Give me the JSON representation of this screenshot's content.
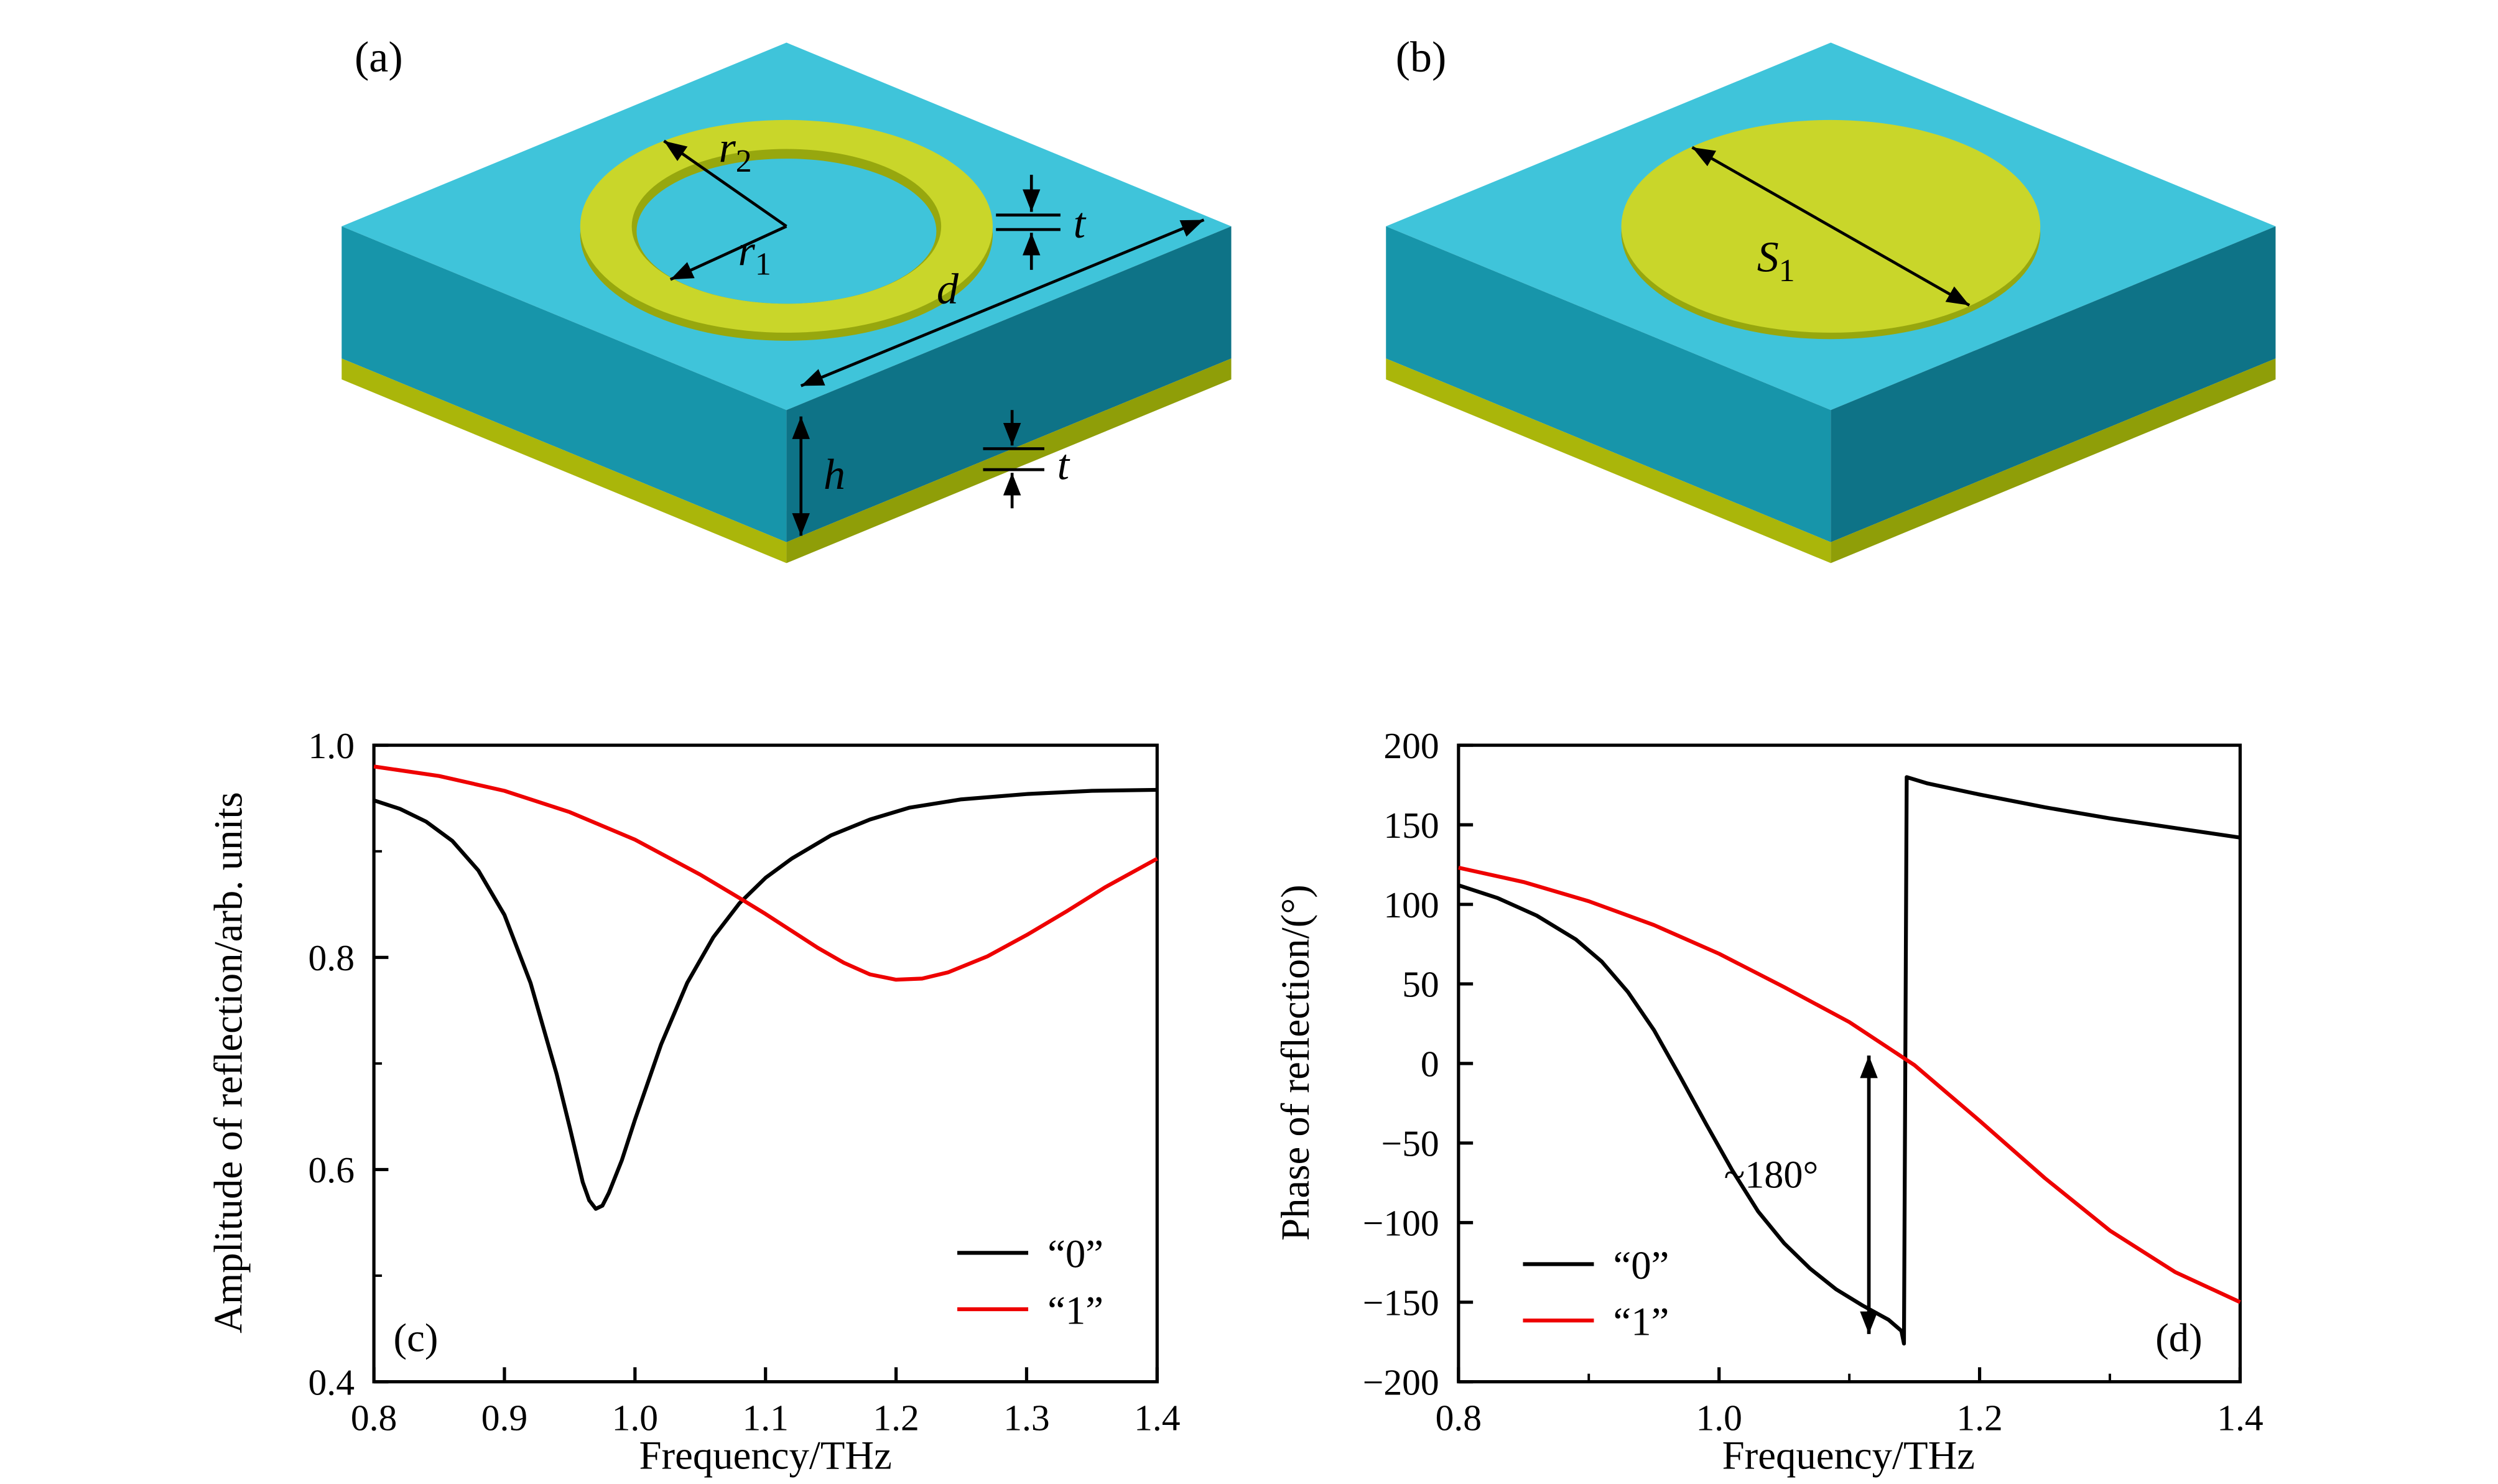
{
  "panel_labels": {
    "a": "(a)",
    "b": "(b)"
  },
  "diagram_a": {
    "r2": {
      "base": "r",
      "sub": "2"
    },
    "r1": {
      "base": "r",
      "sub": "1"
    },
    "t_ring": "t",
    "d": "d",
    "t_layer": "t",
    "h": "h"
  },
  "diagram_b": {
    "s1": {
      "base": "S",
      "sub": "1"
    }
  },
  "colors": {
    "substrate_top": "#3fc4da",
    "substrate_left": "#1795aa",
    "substrate_right": "#0e7387",
    "metal": "#c9d62a",
    "metal_dark": "#97a70e",
    "ground_left": "#aab60a",
    "ground_right": "#8f9e08",
    "series_0": "#000000",
    "series_1": "#ee0000"
  },
  "chart_data": [
    {
      "type": "line",
      "panel_label": "(c)",
      "xlabel": "Frequency/THz",
      "ylabel": "Amplitude of reflection/arb. units",
      "xlim": [
        0.8,
        1.4
      ],
      "ylim": [
        0.4,
        1.0
      ],
      "xticks": [
        [
          0.8,
          "0.8"
        ],
        [
          0.9,
          "0.9"
        ],
        [
          1.0,
          "1.0"
        ],
        [
          1.1,
          "1.1"
        ],
        [
          1.2,
          "1.2"
        ],
        [
          1.3,
          "1.3"
        ],
        [
          1.4,
          "1.4"
        ]
      ],
      "xminor": [],
      "yticks": [
        [
          1.0,
          "1.0"
        ],
        [
          0.8,
          "0.8"
        ],
        [
          0.6,
          "0.6"
        ],
        [
          0.4,
          "0.4"
        ]
      ],
      "yminor": [
        0.9,
        0.7,
        0.5
      ],
      "legend": [
        {
          "name": "“0”",
          "color": "#000000"
        },
        {
          "name": "“1”",
          "color": "#ee0000"
        }
      ],
      "series": [
        {
          "name": "“0”",
          "color": "#000000",
          "points": [
            [
              0.8,
              0.948
            ],
            [
              0.82,
              0.94
            ],
            [
              0.84,
              0.928
            ],
            [
              0.86,
              0.91
            ],
            [
              0.88,
              0.882
            ],
            [
              0.9,
              0.84
            ],
            [
              0.92,
              0.776
            ],
            [
              0.94,
              0.69
            ],
            [
              0.95,
              0.64
            ],
            [
              0.96,
              0.588
            ],
            [
              0.965,
              0.571
            ],
            [
              0.97,
              0.563
            ],
            [
              0.975,
              0.566
            ],
            [
              0.98,
              0.578
            ],
            [
              0.99,
              0.609
            ],
            [
              1.0,
              0.647
            ],
            [
              1.02,
              0.718
            ],
            [
              1.04,
              0.776
            ],
            [
              1.06,
              0.819
            ],
            [
              1.08,
              0.851
            ],
            [
              1.1,
              0.875
            ],
            [
              1.12,
              0.893
            ],
            [
              1.15,
              0.915
            ],
            [
              1.18,
              0.93
            ],
            [
              1.21,
              0.941
            ],
            [
              1.25,
              0.949
            ],
            [
              1.3,
              0.954
            ],
            [
              1.35,
              0.957
            ],
            [
              1.4,
              0.958
            ]
          ]
        },
        {
          "name": "“1”",
          "color": "#ee0000",
          "points": [
            [
              0.8,
              0.98
            ],
            [
              0.85,
              0.971
            ],
            [
              0.9,
              0.957
            ],
            [
              0.95,
              0.937
            ],
            [
              1.0,
              0.911
            ],
            [
              1.05,
              0.878
            ],
            [
              1.08,
              0.856
            ],
            [
              1.1,
              0.841
            ],
            [
              1.12,
              0.825
            ],
            [
              1.14,
              0.809
            ],
            [
              1.16,
              0.795
            ],
            [
              1.18,
              0.784
            ],
            [
              1.2,
              0.779
            ],
            [
              1.22,
              0.78
            ],
            [
              1.24,
              0.786
            ],
            [
              1.27,
              0.801
            ],
            [
              1.3,
              0.821
            ],
            [
              1.33,
              0.843
            ],
            [
              1.36,
              0.866
            ],
            [
              1.4,
              0.893
            ]
          ]
        }
      ]
    },
    {
      "type": "line",
      "panel_label": "(d)",
      "xlabel": "Frequency/THz",
      "ylabel": "Phase of reflection/(°)",
      "xlim": [
        0.8,
        1.4
      ],
      "ylim": [
        -200,
        200
      ],
      "xticks": [
        [
          0.8,
          "0.8"
        ],
        [
          1.0,
          "1.0"
        ],
        [
          1.2,
          "1.2"
        ],
        [
          1.4,
          "1.4"
        ]
      ],
      "xminor": [
        0.9,
        1.1,
        1.3
      ],
      "yticks": [
        [
          200,
          "200"
        ],
        [
          150,
          "150"
        ],
        [
          100,
          "100"
        ],
        [
          50,
          "50"
        ],
        [
          0,
          "0"
        ],
        [
          -50,
          "−50"
        ],
        [
          -100,
          "−100"
        ],
        [
          -150,
          "−150"
        ],
        [
          -200,
          "−200"
        ]
      ],
      "yminor": [],
      "legend": [
        {
          "name": "“0”",
          "color": "#000000"
        },
        {
          "name": "“1”",
          "color": "#ee0000"
        }
      ],
      "series": [
        {
          "name": "“0”",
          "color": "#000000",
          "points": [
            [
              0.8,
              112
            ],
            [
              0.83,
              104
            ],
            [
              0.86,
              93
            ],
            [
              0.89,
              78
            ],
            [
              0.91,
              64
            ],
            [
              0.93,
              45
            ],
            [
              0.95,
              21
            ],
            [
              0.97,
              -8
            ],
            [
              0.99,
              -38
            ],
            [
              1.01,
              -67
            ],
            [
              1.03,
              -93
            ],
            [
              1.05,
              -113
            ],
            [
              1.07,
              -129
            ],
            [
              1.09,
              -142
            ],
            [
              1.11,
              -152
            ],
            [
              1.13,
              -161
            ],
            [
              1.14,
              -168
            ],
            [
              1.142,
              -176
            ],
            [
              1.144,
              180
            ],
            [
              1.16,
              176
            ],
            [
              1.2,
              169
            ],
            [
              1.25,
              161
            ],
            [
              1.3,
              154
            ],
            [
              1.35,
              148
            ],
            [
              1.4,
              142
            ]
          ]
        },
        {
          "name": "“1”",
          "color": "#ee0000",
          "points": [
            [
              0.8,
              123
            ],
            [
              0.85,
              114
            ],
            [
              0.9,
              102
            ],
            [
              0.95,
              87
            ],
            [
              1.0,
              69
            ],
            [
              1.05,
              48
            ],
            [
              1.1,
              26
            ],
            [
              1.15,
              -1
            ],
            [
              1.2,
              -36
            ],
            [
              1.25,
              -72
            ],
            [
              1.3,
              -105
            ],
            [
              1.35,
              -131
            ],
            [
              1.4,
              -150
            ]
          ]
        }
      ],
      "annotation": {
        "arrow": {
          "x": 1.115,
          "y1": 5,
          "y2": -170
        },
        "label": {
          "text": "~180°",
          "x": 1.04,
          "y": -78
        }
      }
    }
  ]
}
